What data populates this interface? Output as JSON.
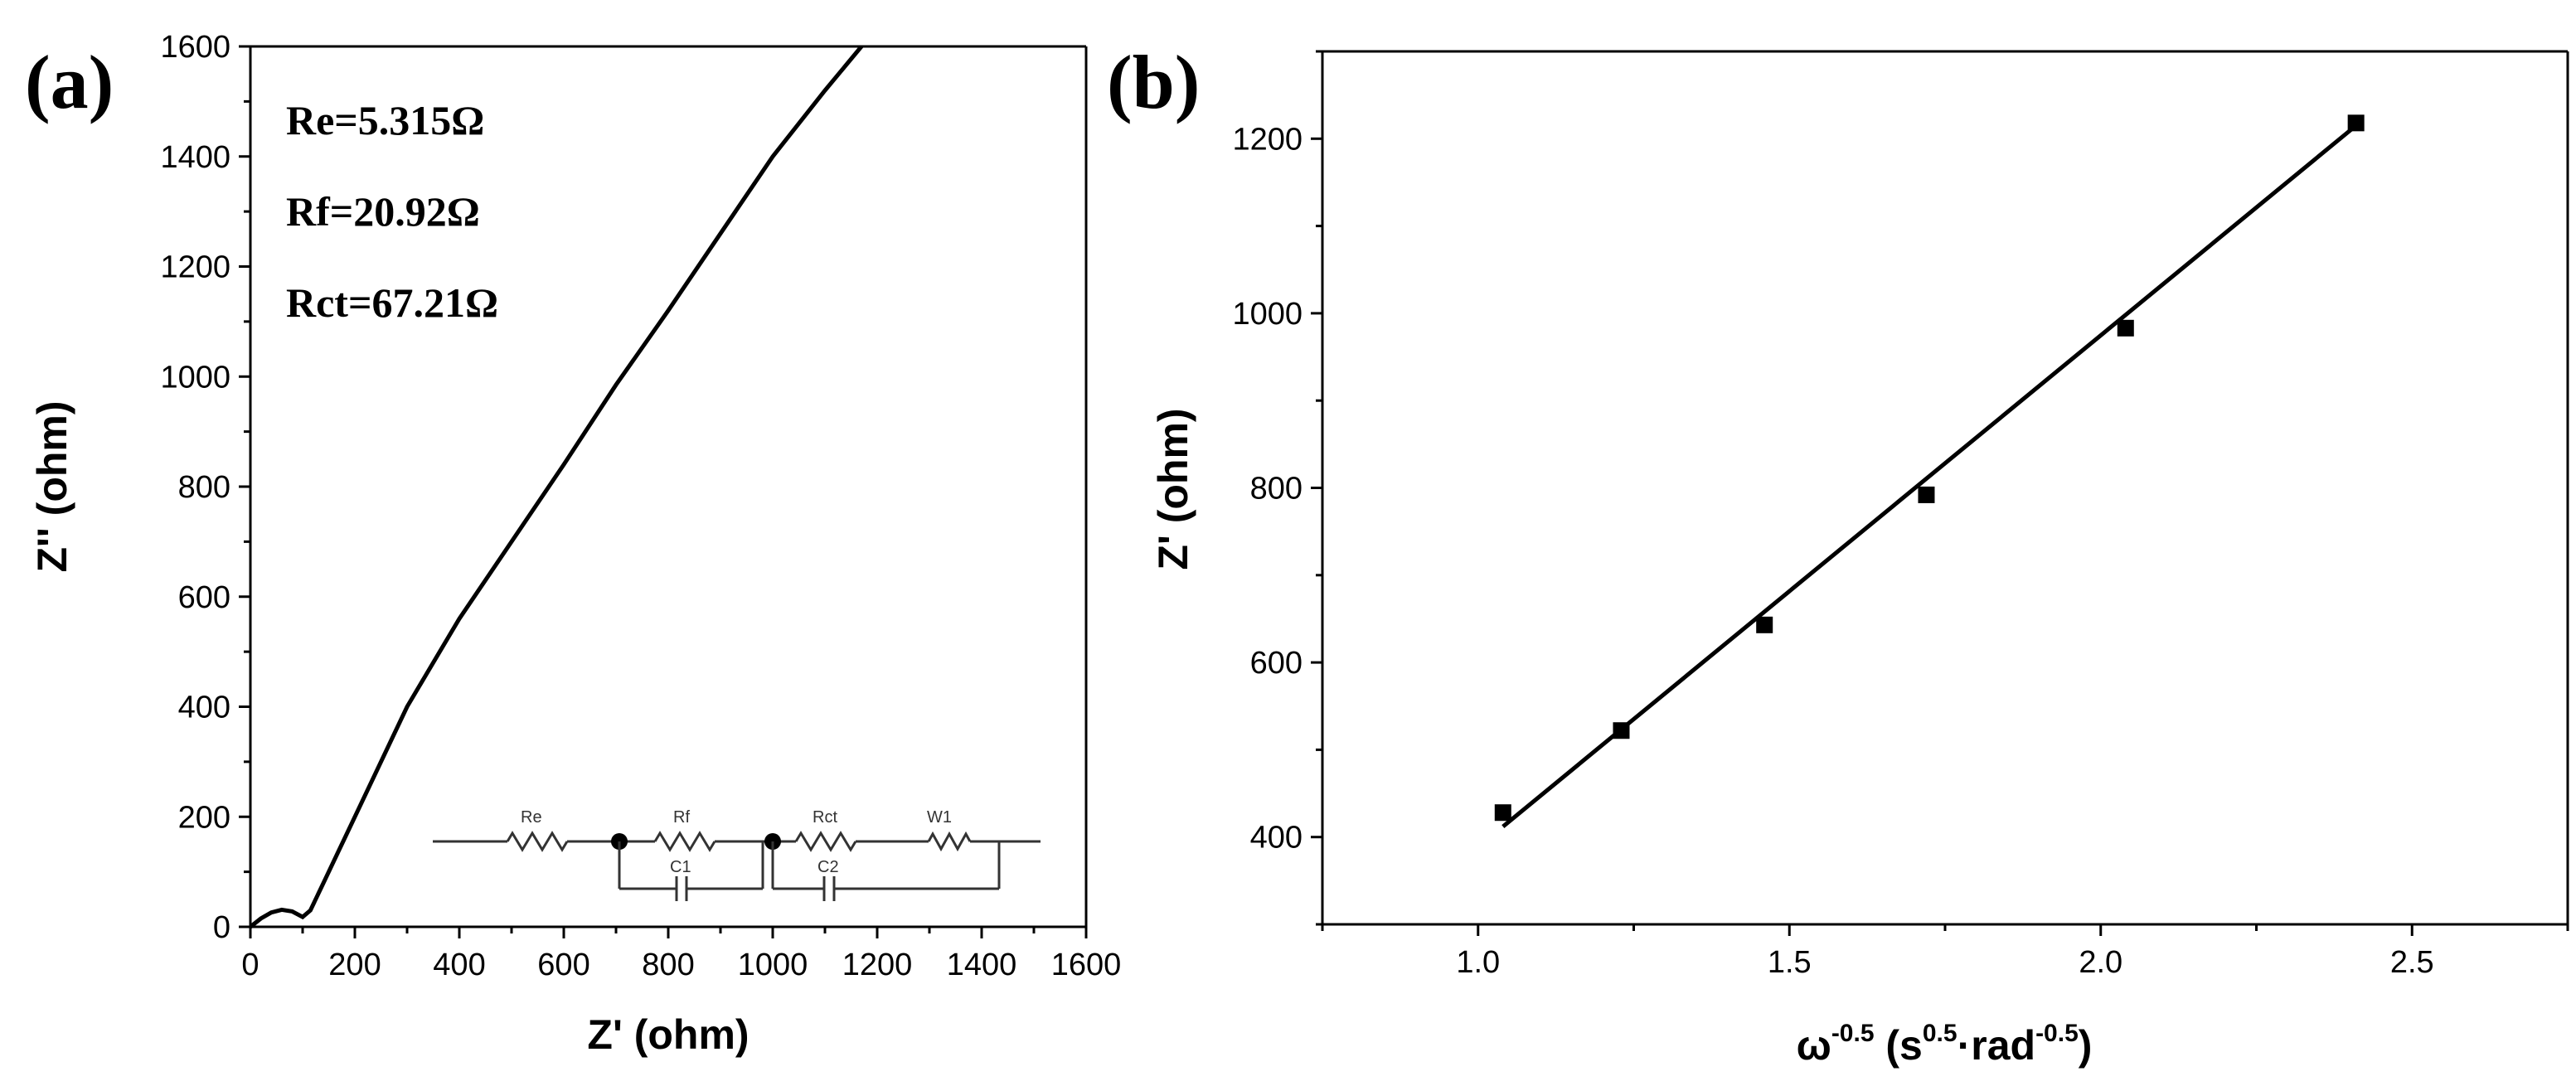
{
  "chart_data": [
    {
      "type": "line",
      "panel_label": "(a)",
      "title": "",
      "xlabel": "Z' (ohm)",
      "ylabel": "Z'' (ohm)",
      "xlim": [
        0,
        1600
      ],
      "ylim": [
        0,
        1600
      ],
      "xticks": [
        "0",
        "200",
        "400",
        "600",
        "800",
        "1000",
        "1200",
        "1400",
        "1600"
      ],
      "yticks": [
        "0",
        "200",
        "400",
        "600",
        "800",
        "1000",
        "1200",
        "1400",
        "1600"
      ],
      "series": [
        {
          "name": "Nyquist plot",
          "x": [
            0,
            20,
            40,
            60,
            80,
            100,
            115,
            140,
            170,
            200,
            250,
            300,
            350,
            400,
            500,
            600,
            700,
            800,
            900,
            1000,
            1100,
            1170
          ],
          "y": [
            0,
            15,
            26,
            31,
            28,
            18,
            30,
            80,
            140,
            200,
            300,
            400,
            480,
            560,
            700,
            840,
            985,
            1120,
            1260,
            1400,
            1520,
            1600
          ]
        }
      ],
      "annotations": [
        "Re=5.315Ω",
        "Rf=20.92Ω",
        "Rct=67.21Ω"
      ],
      "circuit_labels": [
        "Re",
        "Rf",
        "Rct",
        "W1",
        "C1",
        "C2"
      ]
    },
    {
      "type": "scatter",
      "panel_label": "(b)",
      "title": "",
      "xlabel_parts": [
        "ω",
        "-0.5",
        " (s",
        "0.5",
        "·rad",
        "-0.5",
        ")"
      ],
      "ylabel": "Z' (ohm)",
      "xlim": [
        0.75,
        2.75
      ],
      "ylim": [
        300,
        1300
      ],
      "xticks": [
        "1.0",
        "1.5",
        "2.0",
        "2.5"
      ],
      "yticks": [
        "400",
        "600",
        "800",
        "1000",
        "1200"
      ],
      "series": [
        {
          "name": "data",
          "x": [
            1.04,
            1.23,
            1.46,
            1.72,
            2.04,
            2.41
          ],
          "y": [
            428,
            522,
            643,
            792,
            983,
            1218
          ]
        }
      ],
      "fit_line": {
        "x": [
          1.04,
          2.41
        ],
        "y": [
          412,
          1215
        ]
      }
    }
  ]
}
